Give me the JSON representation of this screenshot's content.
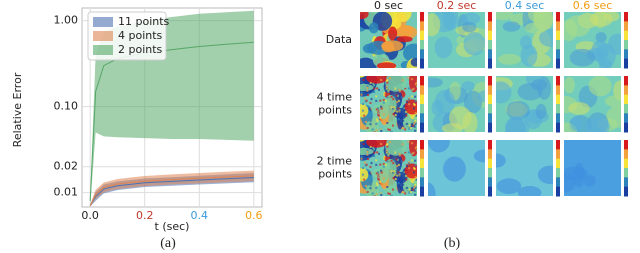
{
  "chart_data": {
    "type": "line",
    "ylabel": "Relative Error",
    "xlabel": "t (sec)",
    "panel_label": "(a)",
    "log_y": true,
    "grid": true,
    "legend": "upper left",
    "x": [
      0,
      0.02,
      0.05,
      0.1,
      0.2,
      0.3,
      0.4,
      0.5,
      0.6
    ],
    "xlim": [
      -0.03,
      0.63
    ],
    "xticks": [
      {
        "value": 0,
        "label": "0.0",
        "color": "#222222"
      },
      {
        "value": 0.2,
        "label": "0.2",
        "color": "#c0392b"
      },
      {
        "value": 0.4,
        "label": "0.4",
        "color": "#3a9ad9"
      },
      {
        "value": 0.6,
        "label": "0.6",
        "color": "#f39c12"
      }
    ],
    "ylim": [
      0.0068,
      1.4
    ],
    "yticks": [
      0.01,
      0.02,
      {
        "value": 0.1,
        "label": "0.10"
      },
      {
        "value": 1,
        "label": "1.00"
      }
    ],
    "series": [
      {
        "name": "11 points",
        "color": "#4c72b0",
        "values": [
          0.007,
          0.009,
          0.011,
          0.012,
          0.013,
          0.0135,
          0.014,
          0.0145,
          0.015
        ],
        "lower": [
          0.0069,
          0.008,
          0.0098,
          0.0107,
          0.0116,
          0.012,
          0.0124,
          0.0128,
          0.0132
        ],
        "upper": [
          0.0072,
          0.0102,
          0.0124,
          0.0135,
          0.0146,
          0.0151,
          0.0157,
          0.0163,
          0.0169
        ]
      },
      {
        "name": "4 points",
        "color": "#dd8452",
        "values": [
          0.007,
          0.0095,
          0.0115,
          0.0126,
          0.0136,
          0.0142,
          0.0147,
          0.0152,
          0.0157
        ],
        "lower": [
          0.0069,
          0.0084,
          0.0101,
          0.011,
          0.0119,
          0.0124,
          0.0128,
          0.0132,
          0.0136
        ],
        "upper": [
          0.0072,
          0.0108,
          0.0131,
          0.0144,
          0.0156,
          0.0163,
          0.0169,
          0.0175,
          0.018
        ]
      },
      {
        "name": "2 points",
        "color": "#55a868",
        "values": [
          0.008,
          0.15,
          0.3,
          0.36,
          0.42,
          0.46,
          0.5,
          0.53,
          0.56
        ],
        "lower": [
          0.007,
          0.05,
          0.045,
          0.044,
          0.043,
          0.042,
          0.042,
          0.041,
          0.04
        ],
        "upper": [
          0.009,
          0.4,
          0.75,
          0.85,
          1.0,
          1.1,
          1.2,
          1.25,
          1.3
        ]
      }
    ]
  },
  "panel_b": {
    "panel_label": "(b)",
    "columns": [
      {
        "label": "0 sec",
        "color": "#222222"
      },
      {
        "label": "0.2 sec",
        "color": "#c0392b"
      },
      {
        "label": "0.4 sec",
        "color": "#3a9ad9"
      },
      {
        "label": "0.6 sec",
        "color": "#f39c12"
      }
    ],
    "rows": [
      [
        "Data"
      ],
      [
        "4 time",
        "points"
      ],
      [
        "2 time",
        "points"
      ]
    ]
  }
}
